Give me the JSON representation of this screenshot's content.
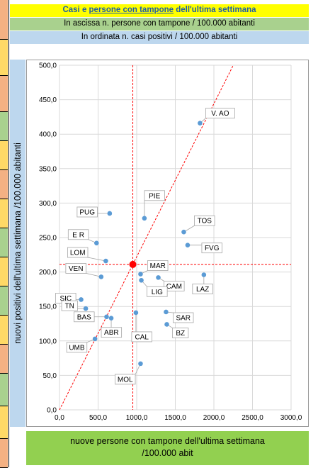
{
  "header": {
    "title_prefix": "Casi e ",
    "title_underlined": "persone con tampone",
    "title_suffix": " dell'ultima settimana",
    "x_desc": "In ascissa n. persone con tampone / 100.000 abitanti",
    "y_desc": "In ordinata n. casi positivi / 100.000 abitanti"
  },
  "chart_data": {
    "type": "scatter",
    "title": "",
    "xlabel_line1": "nuove persone con tampone dell'ultima settimana",
    "xlabel_line2": "/100.000 abit",
    "ylabel": "nuovi positivi dell'ultima settimana /100.000 abitanti",
    "xlim": [
      0,
      3000
    ],
    "ylim": [
      0,
      500
    ],
    "xticks": [
      "0,0",
      "500,0",
      "1000,0",
      "1500,0",
      "2000,0",
      "2500,0",
      "3000,0"
    ],
    "yticks": [
      "0,0",
      "50,0",
      "100,0",
      "150,0",
      "200,0",
      "250,0",
      "300,0",
      "350,0",
      "400,0",
      "450,0",
      "500,0"
    ],
    "grid": true,
    "point_color": "#5b9bd5",
    "reference_color": "#ff0000",
    "reference_point": {
      "x": 950,
      "y": 211
    },
    "points": [
      {
        "label": "V. AO",
        "x": 1820,
        "y": 416
      },
      {
        "label": "PIE",
        "x": 1100,
        "y": 278
      },
      {
        "label": "PUG",
        "x": 650,
        "y": 285
      },
      {
        "label": "TOS",
        "x": 1610,
        "y": 258
      },
      {
        "label": "E R",
        "x": 480,
        "y": 242
      },
      {
        "label": "FVG",
        "x": 1660,
        "y": 239
      },
      {
        "label": "LOM",
        "x": 600,
        "y": 216
      },
      {
        "label": "MAR",
        "x": 1050,
        "y": 197
      },
      {
        "label": "VEN",
        "x": 540,
        "y": 193
      },
      {
        "label": "CAM",
        "x": 1280,
        "y": 192
      },
      {
        "label": "LIG",
        "x": 1060,
        "y": 188
      },
      {
        "label": "LAZ",
        "x": 1870,
        "y": 196
      },
      {
        "label": "SIC",
        "x": 280,
        "y": 160
      },
      {
        "label": "TN",
        "x": 340,
        "y": 147
      },
      {
        "label": "SAR",
        "x": 1380,
        "y": 142
      },
      {
        "label": "CAL",
        "x": 990,
        "y": 141
      },
      {
        "label": "BAS",
        "x": 610,
        "y": 135
      },
      {
        "label": "ABR",
        "x": 670,
        "y": 133
      },
      {
        "label": "BZ",
        "x": 1390,
        "y": 124
      },
      {
        "label": "UMB",
        "x": 460,
        "y": 103
      },
      {
        "label": "MOL",
        "x": 1050,
        "y": 67
      }
    ]
  }
}
